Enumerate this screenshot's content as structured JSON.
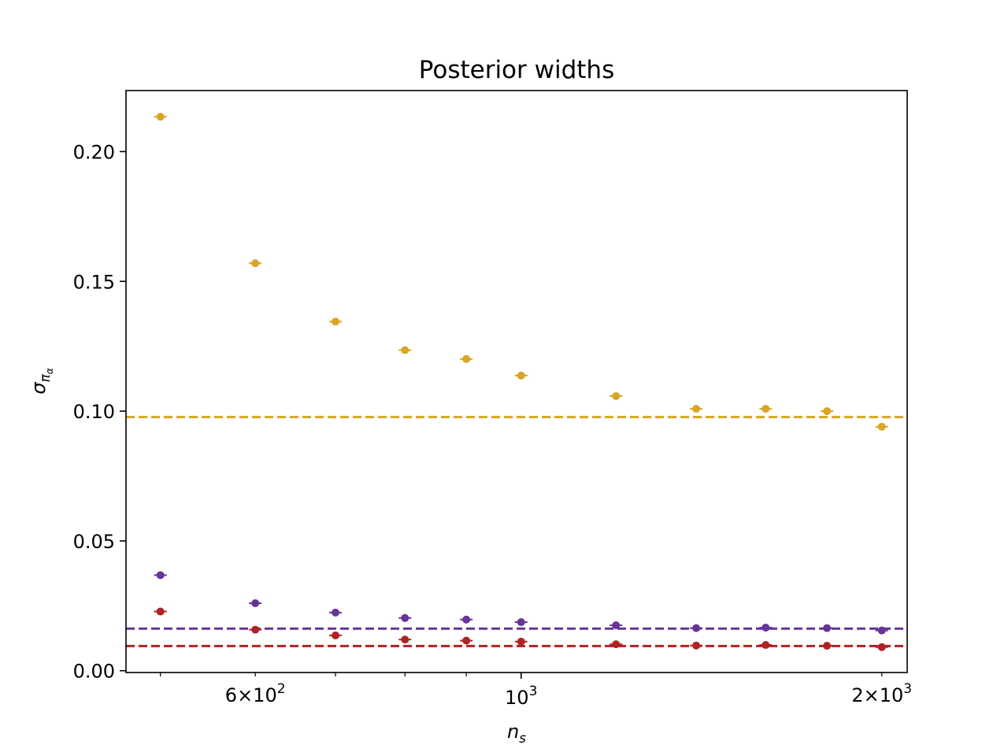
{
  "chart_data": {
    "type": "scatter",
    "title": "Posterior widths",
    "xlabel": {
      "main": "n",
      "sub": "s"
    },
    "ylabel": {
      "main": "σ",
      "sub": "π",
      "subsub": "α"
    },
    "xscale": "log",
    "xlim": [
      468,
      2100
    ],
    "ylim": [
      -0.0007,
      0.2235
    ],
    "grid": false,
    "legend": "none",
    "x_major_ticks": [
      {
        "value": 1000,
        "base": "10",
        "exp": "3"
      }
    ],
    "x_minor_ticks": [
      {
        "value": 600,
        "mant": "6",
        "base": "10",
        "exp": "2"
      },
      {
        "value": 2000,
        "mant": "2",
        "base": "10",
        "exp": "3"
      },
      {
        "value": 500
      },
      {
        "value": 700
      },
      {
        "value": 800
      },
      {
        "value": 900
      }
    ],
    "y_ticks": [
      {
        "value": 0.0,
        "label": "0.00"
      },
      {
        "value": 0.05,
        "label": "0.05"
      },
      {
        "value": 0.1,
        "label": "0.10"
      },
      {
        "value": 0.15,
        "label": "0.15"
      },
      {
        "value": 0.2,
        "label": "0.20"
      }
    ],
    "x": [
      500,
      600,
      700,
      800,
      900,
      1000,
      1200,
      1400,
      1600,
      1800,
      2000
    ],
    "series": [
      {
        "color": "#DAA520",
        "values": [
          0.2134,
          0.157,
          0.1345,
          0.1235,
          0.1201,
          0.1137,
          0.1058,
          0.1009,
          0.1009,
          0.1,
          0.094
        ],
        "errors": [
          0.0008,
          0.0006,
          0.0005,
          0.0004,
          0.0004,
          0.0004,
          0.0004,
          0.0004,
          0.0004,
          0.0003,
          0.0003
        ],
        "reference": 0.0977
      },
      {
        "color": "#663399",
        "values": [
          0.0368,
          0.026,
          0.0224,
          0.0203,
          0.0197,
          0.0187,
          0.0175,
          0.0164,
          0.0166,
          0.0164,
          0.0155
        ],
        "errors": [
          0.0003,
          0.0003,
          0.0002,
          0.0002,
          0.0002,
          0.0002,
          0.0002,
          0.0002,
          0.0002,
          0.0002,
          0.0002
        ],
        "reference": 0.0162
      },
      {
        "color": "#B22222",
        "values": [
          0.0228,
          0.0158,
          0.0136,
          0.012,
          0.0116,
          0.0112,
          0.0102,
          0.0097,
          0.0099,
          0.0096,
          0.0091
        ],
        "errors": [
          0.0002,
          0.0002,
          0.0002,
          0.0002,
          0.0002,
          0.0002,
          0.0002,
          0.0002,
          0.0002,
          0.0002,
          0.0002
        ],
        "reference": 0.0095
      }
    ]
  }
}
